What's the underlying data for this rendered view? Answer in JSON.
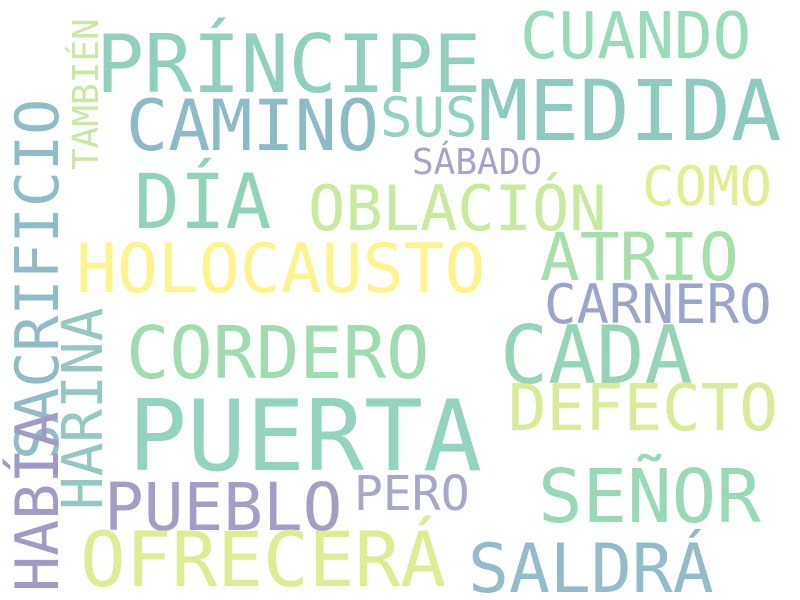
{
  "words": [
    {
      "text": "PRÍNCIPE",
      "color": "#8fd1bd"
    },
    {
      "text": "CUANDO",
      "color": "#95dcb7"
    },
    {
      "text": "MEDIDA",
      "color": "#8dcbc0"
    },
    {
      "text": "CAMINO",
      "color": "#8bbcc6"
    },
    {
      "text": "SUS",
      "color": "#90d4bf"
    },
    {
      "text": "SÁBADO",
      "color": "#a4a4c8"
    },
    {
      "text": "DÍA",
      "color": "#90d4b8"
    },
    {
      "text": "OBLACIÓN",
      "color": "#c8ea9c"
    },
    {
      "text": "COMO",
      "color": "#e2ef90"
    },
    {
      "text": "HOLOCAUSTO",
      "color": "#fdf48c"
    },
    {
      "text": "ATRIO",
      "color": "#a5e0ab"
    },
    {
      "text": "CARNERO",
      "color": "#9aa6c7"
    },
    {
      "text": "CORDERO",
      "color": "#9fdcb0"
    },
    {
      "text": "CADA",
      "color": "#94d5b7"
    },
    {
      "text": "DEFECTO",
      "color": "#d7ec95"
    },
    {
      "text": "PUERTA",
      "color": "#92d4bd"
    },
    {
      "text": "SEÑOR",
      "color": "#98dab6"
    },
    {
      "text": "PUEBLO",
      "color": "#a29ec6"
    },
    {
      "text": "PERO",
      "color": "#a6a8c8"
    },
    {
      "text": "OFRECERÁ",
      "color": "#dbee92"
    },
    {
      "text": "SALDRÁ",
      "color": "#92bcc8"
    },
    {
      "text": "SACRIFICIO",
      "color": "#90bcc8"
    },
    {
      "text": "TAMBIÉN",
      "color": "#c9e8a4"
    },
    {
      "text": "HARINA",
      "color": "#95c8c2"
    },
    {
      "text": "HABÍA",
      "color": "#a09bc4"
    }
  ]
}
